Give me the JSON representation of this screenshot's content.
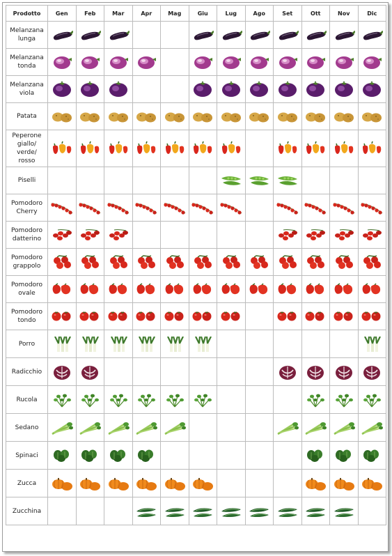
{
  "header": {
    "product_label": "Prodotto",
    "months": [
      "Gen",
      "Feb",
      "Mar",
      "Apr",
      "Mag",
      "Giu",
      "Lug",
      "Ago",
      "Set",
      "Ott",
      "Nov",
      "Dic"
    ]
  },
  "colors": {
    "border": "#bcbcbc",
    "frame": "#9a9a9a"
  },
  "rows": [
    {
      "name": "Melanzana\nlunga",
      "icon": "long-eggplant",
      "months": [
        1,
        1,
        1,
        0,
        0,
        1,
        1,
        1,
        1,
        1,
        1,
        1
      ]
    },
    {
      "name": "Melanzana\ntonda",
      "icon": "round-eggplant",
      "months": [
        1,
        1,
        1,
        1,
        0,
        1,
        1,
        1,
        1,
        1,
        1,
        1
      ]
    },
    {
      "name": "Melanzana\nviola",
      "icon": "violet-eggplant",
      "months": [
        1,
        1,
        1,
        0,
        0,
        1,
        1,
        1,
        1,
        1,
        1,
        1
      ]
    },
    {
      "name": "Patata",
      "icon": "potato",
      "months": [
        1,
        1,
        1,
        1,
        1,
        1,
        1,
        1,
        1,
        1,
        1,
        1
      ]
    },
    {
      "name": "Peperone\ngiallo/\nverde/\nrosso",
      "icon": "bell-pepper",
      "months": [
        1,
        1,
        1,
        1,
        1,
        1,
        1,
        0,
        1,
        1,
        1,
        1
      ]
    },
    {
      "name": "Piselli",
      "icon": "pea-pod",
      "months": [
        0,
        0,
        0,
        0,
        0,
        0,
        1,
        1,
        1,
        0,
        0,
        0
      ]
    },
    {
      "name": "Pomodoro\nCherry",
      "icon": "cherry-tomato",
      "months": [
        1,
        1,
        1,
        1,
        1,
        1,
        1,
        0,
        1,
        1,
        1,
        1
      ]
    },
    {
      "name": "Pomodoro\ndatterino",
      "icon": "datterino-tomato",
      "months": [
        1,
        1,
        1,
        0,
        0,
        0,
        0,
        0,
        1,
        1,
        1,
        1
      ]
    },
    {
      "name": "Pomodoro\ngrappolo",
      "icon": "cluster-tomato",
      "months": [
        1,
        1,
        1,
        1,
        1,
        1,
        1,
        1,
        1,
        1,
        1,
        1
      ]
    },
    {
      "name": "Pomodoro\novale",
      "icon": "oval-tomato",
      "months": [
        1,
        1,
        1,
        1,
        1,
        1,
        1,
        1,
        1,
        1,
        1,
        1
      ]
    },
    {
      "name": "Pomodoro\ntondo",
      "icon": "round-tomato",
      "months": [
        1,
        1,
        1,
        1,
        1,
        1,
        1,
        0,
        1,
        1,
        1,
        1
      ]
    },
    {
      "name": "Porro",
      "icon": "leek",
      "months": [
        1,
        1,
        1,
        1,
        1,
        1,
        0,
        0,
        0,
        0,
        0,
        1
      ]
    },
    {
      "name": "Radicchio",
      "icon": "radicchio",
      "months": [
        1,
        1,
        0,
        0,
        0,
        0,
        0,
        0,
        1,
        1,
        1,
        1
      ]
    },
    {
      "name": "Rucola",
      "icon": "arugula",
      "months": [
        1,
        1,
        1,
        1,
        1,
        1,
        0,
        0,
        0,
        1,
        1,
        1
      ]
    },
    {
      "name": "Sedano",
      "icon": "celery",
      "months": [
        1,
        1,
        1,
        1,
        1,
        0,
        0,
        0,
        1,
        1,
        1,
        1
      ]
    },
    {
      "name": "Spinaci",
      "icon": "spinach",
      "months": [
        1,
        1,
        1,
        1,
        0,
        0,
        0,
        0,
        0,
        1,
        1,
        1
      ]
    },
    {
      "name": "Zucca",
      "icon": "pumpkin",
      "months": [
        1,
        1,
        1,
        1,
        1,
        1,
        0,
        0,
        0,
        1,
        1,
        1
      ]
    },
    {
      "name": "Zucchina",
      "icon": "zucchini",
      "months": [
        0,
        0,
        0,
        1,
        1,
        1,
        1,
        1,
        1,
        1,
        1,
        0
      ]
    }
  ]
}
